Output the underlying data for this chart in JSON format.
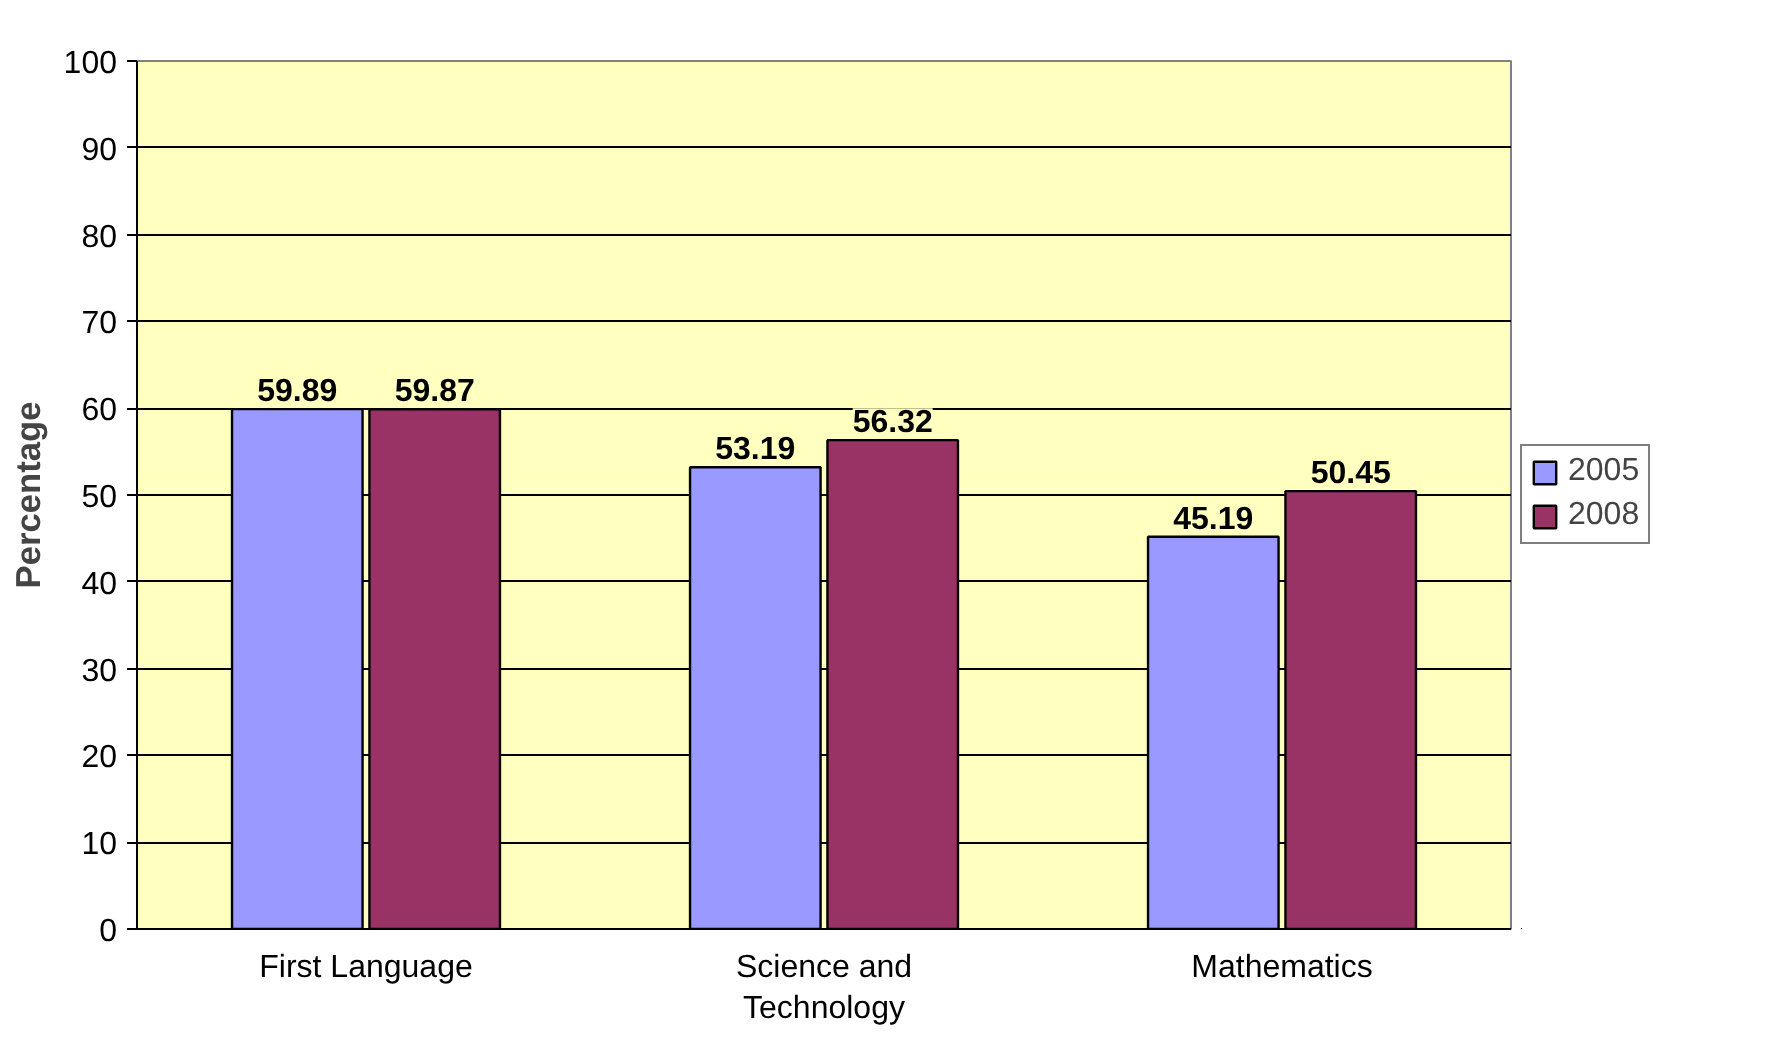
{
  "chart_data": {
    "type": "bar",
    "ylabel": "Percentage",
    "categories": [
      "First Language",
      "Science and Technology",
      "Mathematics"
    ],
    "series": [
      {
        "name": "2005",
        "color": "#9999ff",
        "values": [
          59.89,
          53.19,
          45.19
        ]
      },
      {
        "name": "2008",
        "color": "#993366",
        "values": [
          59.87,
          56.32,
          50.45
        ]
      }
    ],
    "ylim": [
      0,
      100
    ],
    "yticks": [
      0,
      10,
      20,
      30,
      40,
      50,
      60,
      70,
      80,
      90,
      100
    ],
    "grid": "y",
    "legend": "right",
    "data_labels": true
  }
}
